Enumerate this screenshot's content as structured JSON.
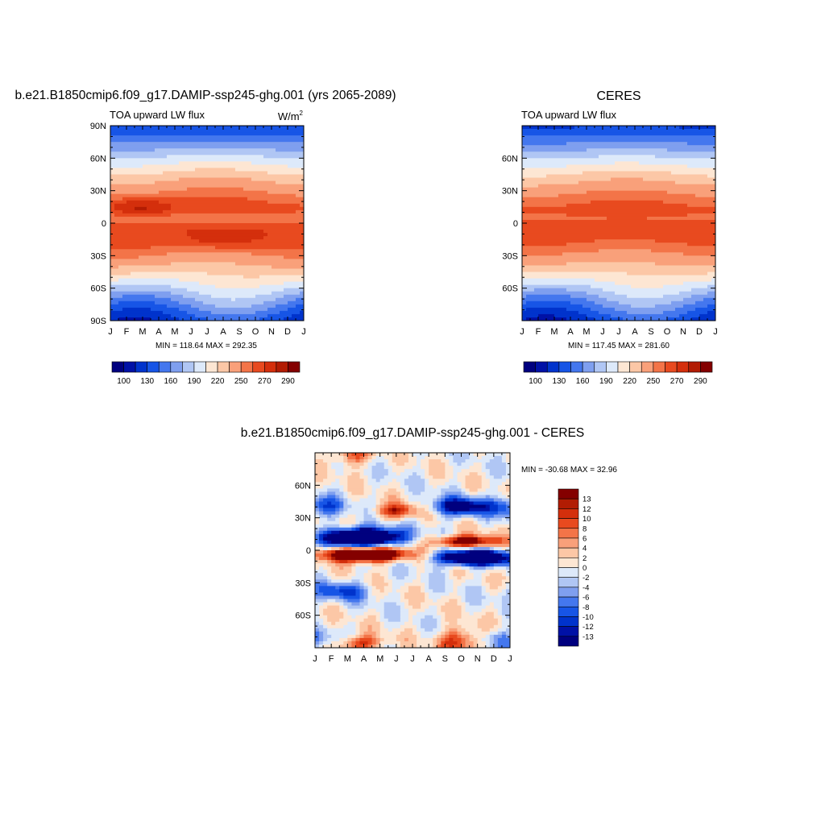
{
  "chart_data": [
    {
      "type": "heatmap",
      "title": "b.e21.B1850cmip6.f09_g17.DAMIP-ssp245-ghg.001 (yrs 2065-2089)",
      "subtitle": "TOA upward LW flux",
      "units": "W/m",
      "units_sup": "2",
      "x_tick_labels": [
        "J",
        "F",
        "M",
        "A",
        "M",
        "J",
        "J",
        "A",
        "S",
        "O",
        "N",
        "D",
        "J"
      ],
      "y_tick_labels": [
        "90N",
        "60N",
        "30N",
        "0",
        "30S",
        "60S",
        "90S"
      ],
      "y_tick_lats": [
        90,
        60,
        30,
        0,
        -30,
        -60,
        -90
      ],
      "ylim": [
        -90,
        90
      ],
      "stats": "MIN = 118.64 MAX = 292.35",
      "colorbar": {
        "labels": [
          "100",
          "130",
          "160",
          "190",
          "220",
          "250",
          "270",
          "290"
        ],
        "colors": [
          "#00007f",
          "#0011a6",
          "#0033cc",
          "#1755e6",
          "#4477ee",
          "#7f9fef",
          "#b0c6f4",
          "#dde9fa",
          "#fde6d3",
          "#fcc7a6",
          "#f9a07a",
          "#f37448",
          "#e84a1f",
          "#d42f0c",
          "#b21c03",
          "#840000"
        ]
      },
      "field": "model"
    },
    {
      "type": "heatmap",
      "title": "CERES",
      "subtitle": "TOA upward LW flux",
      "x_tick_labels": [
        "J",
        "F",
        "M",
        "A",
        "M",
        "J",
        "J",
        "A",
        "S",
        "O",
        "N",
        "D",
        "J"
      ],
      "y_tick_labels": [
        "60N",
        "30N",
        "0",
        "30S",
        "60S"
      ],
      "y_tick_lats": [
        60,
        30,
        0,
        -30,
        -60
      ],
      "ylim": [
        -90,
        90
      ],
      "stats": "MIN = 117.45 MAX = 281.60",
      "colorbar": {
        "labels": [
          "100",
          "130",
          "160",
          "190",
          "220",
          "250",
          "270",
          "290"
        ],
        "colors": [
          "#00007f",
          "#0011a6",
          "#0033cc",
          "#1755e6",
          "#4477ee",
          "#7f9fef",
          "#b0c6f4",
          "#dde9fa",
          "#fde6d3",
          "#fcc7a6",
          "#f9a07a",
          "#f37448",
          "#e84a1f",
          "#d42f0c",
          "#b21c03",
          "#840000"
        ]
      },
      "field": "obs"
    },
    {
      "type": "heatmap",
      "title": "b.e21.B1850cmip6.f09_g17.DAMIP-ssp245-ghg.001 - CERES",
      "x_tick_labels": [
        "J",
        "F",
        "M",
        "A",
        "M",
        "J",
        "J",
        "A",
        "S",
        "O",
        "N",
        "D",
        "J"
      ],
      "y_tick_labels": [
        "60N",
        "30N",
        "0",
        "30S",
        "60S"
      ],
      "y_tick_lats": [
        60,
        30,
        0,
        -30,
        -60
      ],
      "ylim": [
        -90,
        90
      ],
      "stats": "MIN = -30.68 MAX =  32.96",
      "colorbar": {
        "labels": [
          "13",
          "12",
          "10",
          "8",
          "6",
          "4",
          "2",
          "0",
          "-2",
          "-4",
          "-6",
          "-8",
          "-10",
          "-12",
          "-13"
        ],
        "colors": [
          "#840000",
          "#b21c03",
          "#d42f0c",
          "#e84a1f",
          "#f37448",
          "#f9a07a",
          "#fcc7a6",
          "#fde6d3",
          "#dde9fa",
          "#b0c6f4",
          "#7f9fef",
          "#4477ee",
          "#1755e6",
          "#0033cc",
          "#0011a6",
          "#00007f"
        ]
      },
      "field": "diff"
    }
  ]
}
